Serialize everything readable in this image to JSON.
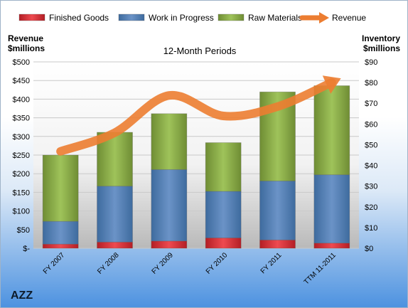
{
  "chart_data": {
    "type": "bar",
    "stacked": true,
    "title": "12-Month Periods",
    "categories": [
      "FY 2007",
      "FY 2008",
      "FY 2009",
      "FY 2010",
      "FY 2011",
      "TTM 11-2011"
    ],
    "left_axis": {
      "label_line1": "Revenue",
      "label_line2": "$millions",
      "ylim": [
        0,
        500
      ],
      "ticks": [
        0,
        50,
        100,
        150,
        200,
        250,
        300,
        350,
        400,
        450,
        500
      ],
      "tick_labels": [
        "$-",
        "$50",
        "$100",
        "$150",
        "$200",
        "$250",
        "$300",
        "$350",
        "$400",
        "$450",
        "$500"
      ]
    },
    "right_axis": {
      "label_line1": "Inventory",
      "label_line2": "$millions",
      "ylim": [
        0,
        90
      ],
      "ticks": [
        0,
        10,
        20,
        30,
        40,
        50,
        60,
        70,
        80,
        90
      ],
      "tick_labels": [
        "$0",
        "$10",
        "$20",
        "$30",
        "$40",
        "$50",
        "$60",
        "$70",
        "$80",
        "$90"
      ]
    },
    "series": [
      {
        "name": "Finished Goods",
        "axis": "right",
        "kind": "bar",
        "color": "#d62730",
        "values": [
          2,
          3,
          3.5,
          5,
          4,
          2.5
        ]
      },
      {
        "name": "Work in Progress",
        "axis": "right",
        "kind": "bar",
        "color": "#4f81bd",
        "values": [
          11,
          27,
          34.5,
          22.5,
          28.5,
          33
        ]
      },
      {
        "name": "Raw Materials",
        "axis": "right",
        "kind": "bar",
        "color": "#9bbb59",
        "values": [
          32,
          26,
          27,
          23.5,
          43,
          43
        ]
      },
      {
        "name": "Revenue",
        "axis": "left",
        "kind": "line",
        "color": "#ec7d31",
        "values": [
          260,
          310,
          410,
          355,
          380,
          445
        ]
      }
    ],
    "legend_position": "top",
    "grid": true
  },
  "footer": {
    "ticker": "AZZ"
  }
}
